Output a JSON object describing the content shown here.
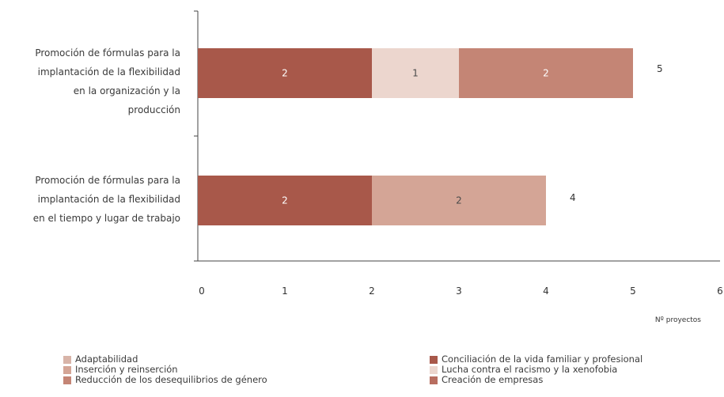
{
  "chart_data": {
    "type": "bar",
    "orientation": "horizontal",
    "stacked": true,
    "categories": [
      "Promoción de fórmulas para la implantación de la flexibilidad en la organización y la producción",
      "Promoción de fórmulas para la implantación de la flexibilidad en el tiempo y lugar de trabajo"
    ],
    "category_lines": [
      [
        "Promoción de fórmulas para la",
        "implantación de la flexibilidad",
        "en la organización y la",
        "producción"
      ],
      [
        "Promoción de fórmulas para la",
        "implantación de la flexibilidad",
        "en el tiempo y lugar de trabajo"
      ]
    ],
    "series": [
      {
        "name": "Adaptabilidad",
        "color": "#d8b4a8",
        "values": [
          0,
          0
        ]
      },
      {
        "name": "Conciliación de la vida familiar y profesional",
        "color": "#a8584a",
        "values": [
          2,
          2
        ]
      },
      {
        "name": "Inserción y reinserción",
        "color": "#d4a596",
        "values": [
          0,
          2
        ]
      },
      {
        "name": "Lucha contra el racismo y la xenofobia",
        "color": "#ecd6ce",
        "values": [
          1,
          0
        ]
      },
      {
        "name": "Reducción de los desequilibrios de género",
        "color": "#c48575",
        "values": [
          2,
          0
        ]
      },
      {
        "name": "Creación de empresas",
        "color": "#b86e60",
        "values": [
          0,
          0
        ]
      }
    ],
    "totals": [
      5,
      4
    ],
    "x_ticks": [
      0,
      1,
      2,
      3,
      4,
      5,
      6
    ],
    "xlim": [
      0,
      6
    ],
    "xlabel": "Nº proyectos",
    "grid": false,
    "legend_position": "bottom"
  }
}
